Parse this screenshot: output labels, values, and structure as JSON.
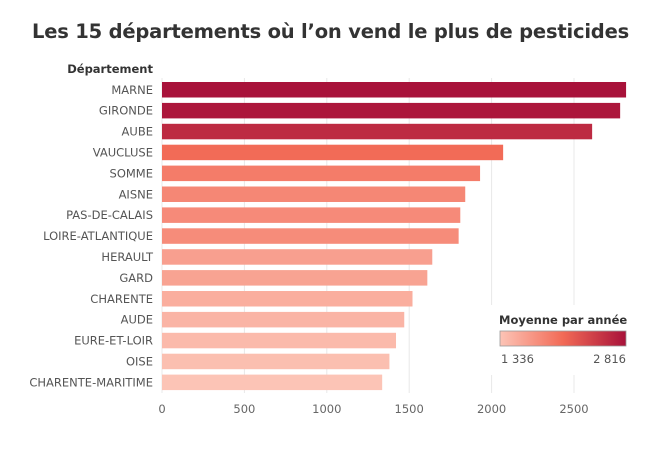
{
  "chart_data": {
    "type": "bar",
    "orientation": "horizontal",
    "title": "Les 15 départements où l’on vend le plus de pesticides",
    "ylabel": "Département",
    "xlabel": "",
    "categories": [
      "MARNE",
      "GIRONDE",
      "AUBE",
      "VAUCLUSE",
      "SOMME",
      "AISNE",
      "PAS-DE-CALAIS",
      "LOIRE-ATLANTIQUE",
      "HERAULT",
      "GARD",
      "CHARENTE",
      "AUDE",
      "EURE-ET-LOIR",
      "OISE",
      "CHARENTE-MARITIME"
    ],
    "values": [
      2816,
      2780,
      2610,
      2070,
      1930,
      1840,
      1810,
      1800,
      1640,
      1610,
      1520,
      1470,
      1420,
      1380,
      1336
    ],
    "xticks": [
      0,
      500,
      1000,
      1500,
      2000,
      2500
    ],
    "xlim": [
      0,
      2900
    ],
    "grid": true,
    "legend": {
      "title": "Moyenne par année",
      "min_label": "1 336",
      "max_label": "2 816",
      "min": 1336,
      "max": 2816,
      "placement": "bottom-right"
    },
    "colors": {
      "low": "#fcc4b6",
      "mid": "#f26a56",
      "high": "#a8123a"
    }
  }
}
